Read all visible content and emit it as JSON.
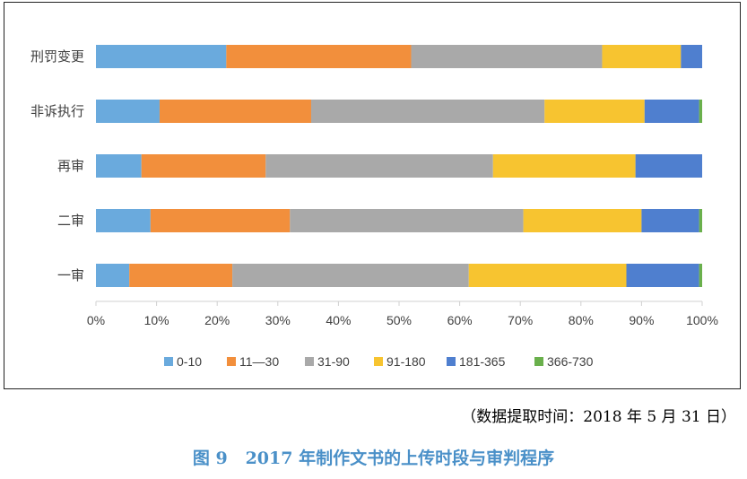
{
  "chart_data": {
    "type": "bar",
    "orientation": "horizontal",
    "stacked": true,
    "percent": true,
    "categories": [
      "刑罚变更",
      "非诉执行",
      "再审",
      "二审",
      "一审"
    ],
    "series": [
      {
        "name": "0-10",
        "color": "#6aaadd",
        "values": [
          21.5,
          10.5,
          7.5,
          9.0,
          5.5
        ]
      },
      {
        "name": "11—30",
        "color": "#f28f3c",
        "values": [
          30.5,
          25.0,
          20.5,
          23.0,
          17.0
        ]
      },
      {
        "name": "31-90",
        "color": "#a9a9a9",
        "values": [
          31.5,
          38.5,
          37.5,
          38.5,
          39.0
        ]
      },
      {
        "name": "91-180",
        "color": "#f7c430",
        "values": [
          13.0,
          16.5,
          23.5,
          19.5,
          26.0
        ]
      },
      {
        "name": "181-365",
        "color": "#4f7fcf",
        "values": [
          3.5,
          9.0,
          11.0,
          9.5,
          12.0
        ]
      },
      {
        "name": "366-730",
        "color": "#6ab04c",
        "values": [
          0.0,
          0.5,
          0.0,
          0.5,
          0.5
        ]
      }
    ],
    "xlim": [
      0,
      100
    ],
    "x_ticks": [
      "0%",
      "10%",
      "20%",
      "30%",
      "40%",
      "50%",
      "60%",
      "70%",
      "80%",
      "90%",
      "100%"
    ],
    "legend_position": "bottom",
    "grid": false
  },
  "source_note": "（数据提取时间：2018 年 5 月 31 日）",
  "figure_caption": "图 9   2017 年制作文书的上传时段与审判程序"
}
